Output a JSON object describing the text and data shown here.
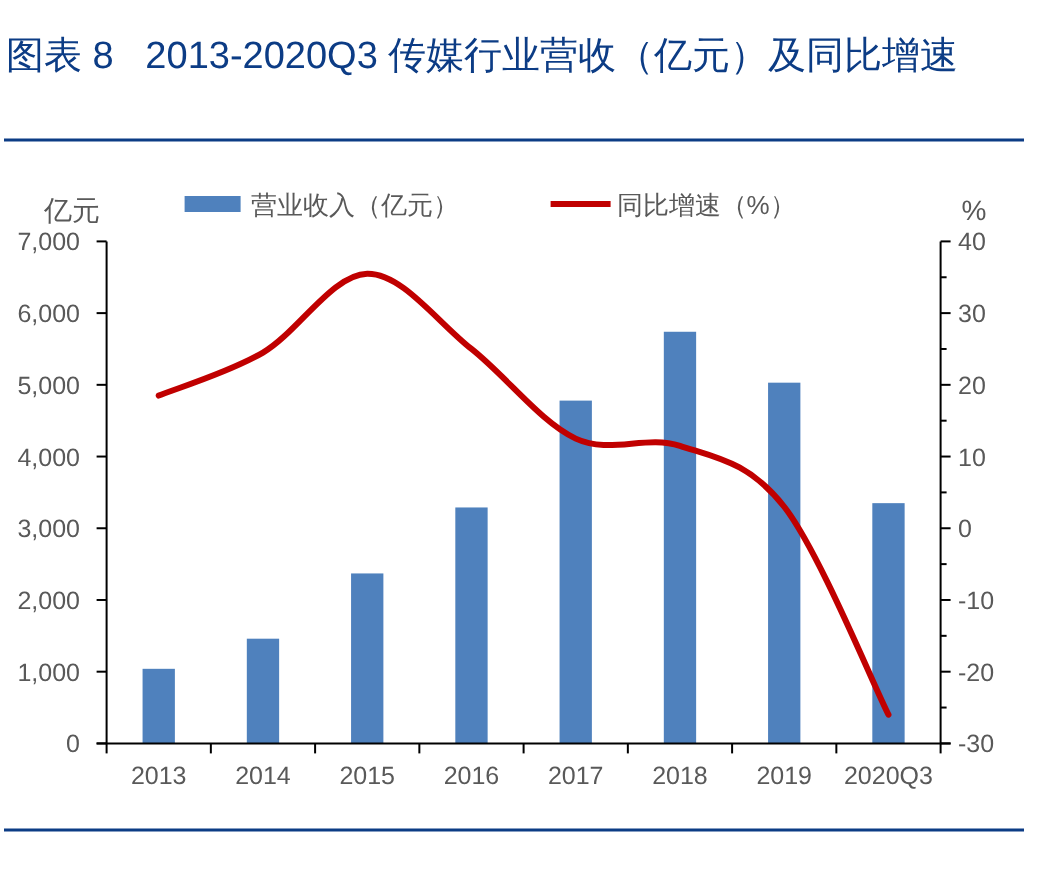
{
  "chart_data": {
    "type": "bar",
    "title": "图表 8   2013-2020Q3 传媒行业营收（亿元）及同比增速",
    "ylabel": "亿元",
    "y2label": "%",
    "categories": [
      "2013",
      "2014",
      "2015",
      "2016",
      "2017",
      "2018",
      "2019",
      "2020Q3"
    ],
    "series": [
      {
        "name": "营业收入（亿元）",
        "color": "#4f81bd",
        "values": [
          1040,
          1460,
          2370,
          3290,
          4780,
          5740,
          5030,
          3350
        ]
      },
      {
        "name": "同比增速（%）",
        "type": "line",
        "axis": "y2",
        "color": "#c00000",
        "values": [
          18.5,
          24.5,
          35.5,
          25,
          12.5,
          11.5,
          3,
          -26
        ]
      }
    ],
    "ylim": [
      0,
      7000
    ],
    "yticks": [
      0,
      {
        "value": 1000,
        "label": "1,000"
      },
      {
        "value": 2000,
        "label": "2,000"
      },
      {
        "value": 3000,
        "label": "3,000"
      },
      {
        "value": 4000,
        "label": "4,000"
      },
      {
        "value": 5000,
        "label": "5,000"
      },
      {
        "value": 6000,
        "label": "6,000"
      },
      {
        "value": 7000,
        "label": "7,000"
      }
    ],
    "y2lim": [
      -30,
      40
    ],
    "y2ticks": [
      -30,
      {
        "value": -25,
        "label": null
      },
      -20,
      {
        "value": -15,
        "label": null
      },
      -10,
      {
        "value": -5,
        "label": null
      },
      0,
      {
        "value": 5,
        "label": null
      },
      10,
      {
        "value": 15,
        "label": null
      },
      20,
      {
        "value": 25,
        "label": null
      },
      30,
      {
        "value": 35,
        "label": null
      },
      40
    ],
    "legend": "top",
    "grid": false
  }
}
